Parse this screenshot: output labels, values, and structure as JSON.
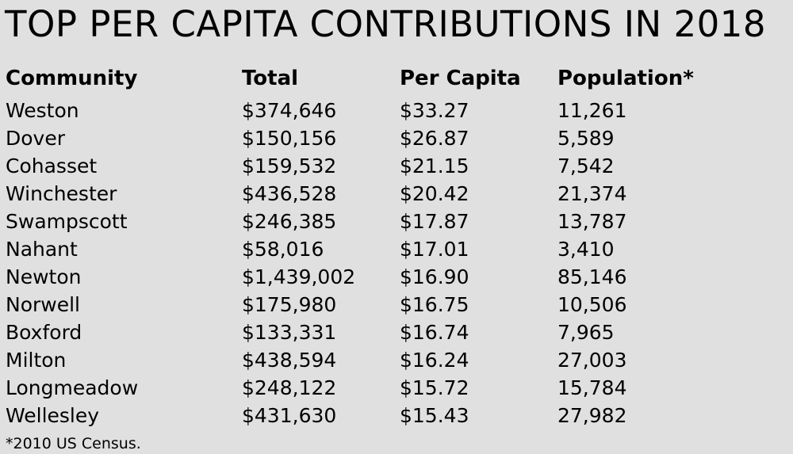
{
  "title": "TOP PER CAPITA CONTRIBUTIONS IN 2018",
  "table": {
    "headers": [
      "Community",
      "Total",
      "Per Capita",
      "Population*"
    ],
    "rows": [
      [
        "Weston",
        "$374,646",
        "$33.27",
        "11,261"
      ],
      [
        "Dover",
        "$150,156",
        "$26.87",
        "5,589"
      ],
      [
        "Cohasset",
        "$159,532",
        "$21.15",
        "7,542"
      ],
      [
        "Winchester",
        "$436,528",
        "$20.42",
        "21,374"
      ],
      [
        "Swampscott",
        "$246,385",
        "$17.87",
        "13,787"
      ],
      [
        "Nahant",
        "$58,016",
        "$17.01",
        "3,410"
      ],
      [
        "Newton",
        "$1,439,002",
        "$16.90",
        "85,146"
      ],
      [
        "Norwell",
        "$175,980",
        "$16.75",
        "10,506"
      ],
      [
        "Boxford",
        "$133,331",
        "$16.74",
        "7,965"
      ],
      [
        "Milton",
        "$438,594",
        "$16.24",
        "27,003"
      ],
      [
        "Longmeadow",
        "$248,122",
        "$15.72",
        "15,784"
      ],
      [
        "Wellesley",
        "$431,630",
        "$15.43",
        "27,982"
      ]
    ]
  },
  "footnote": "*2010 US Census."
}
